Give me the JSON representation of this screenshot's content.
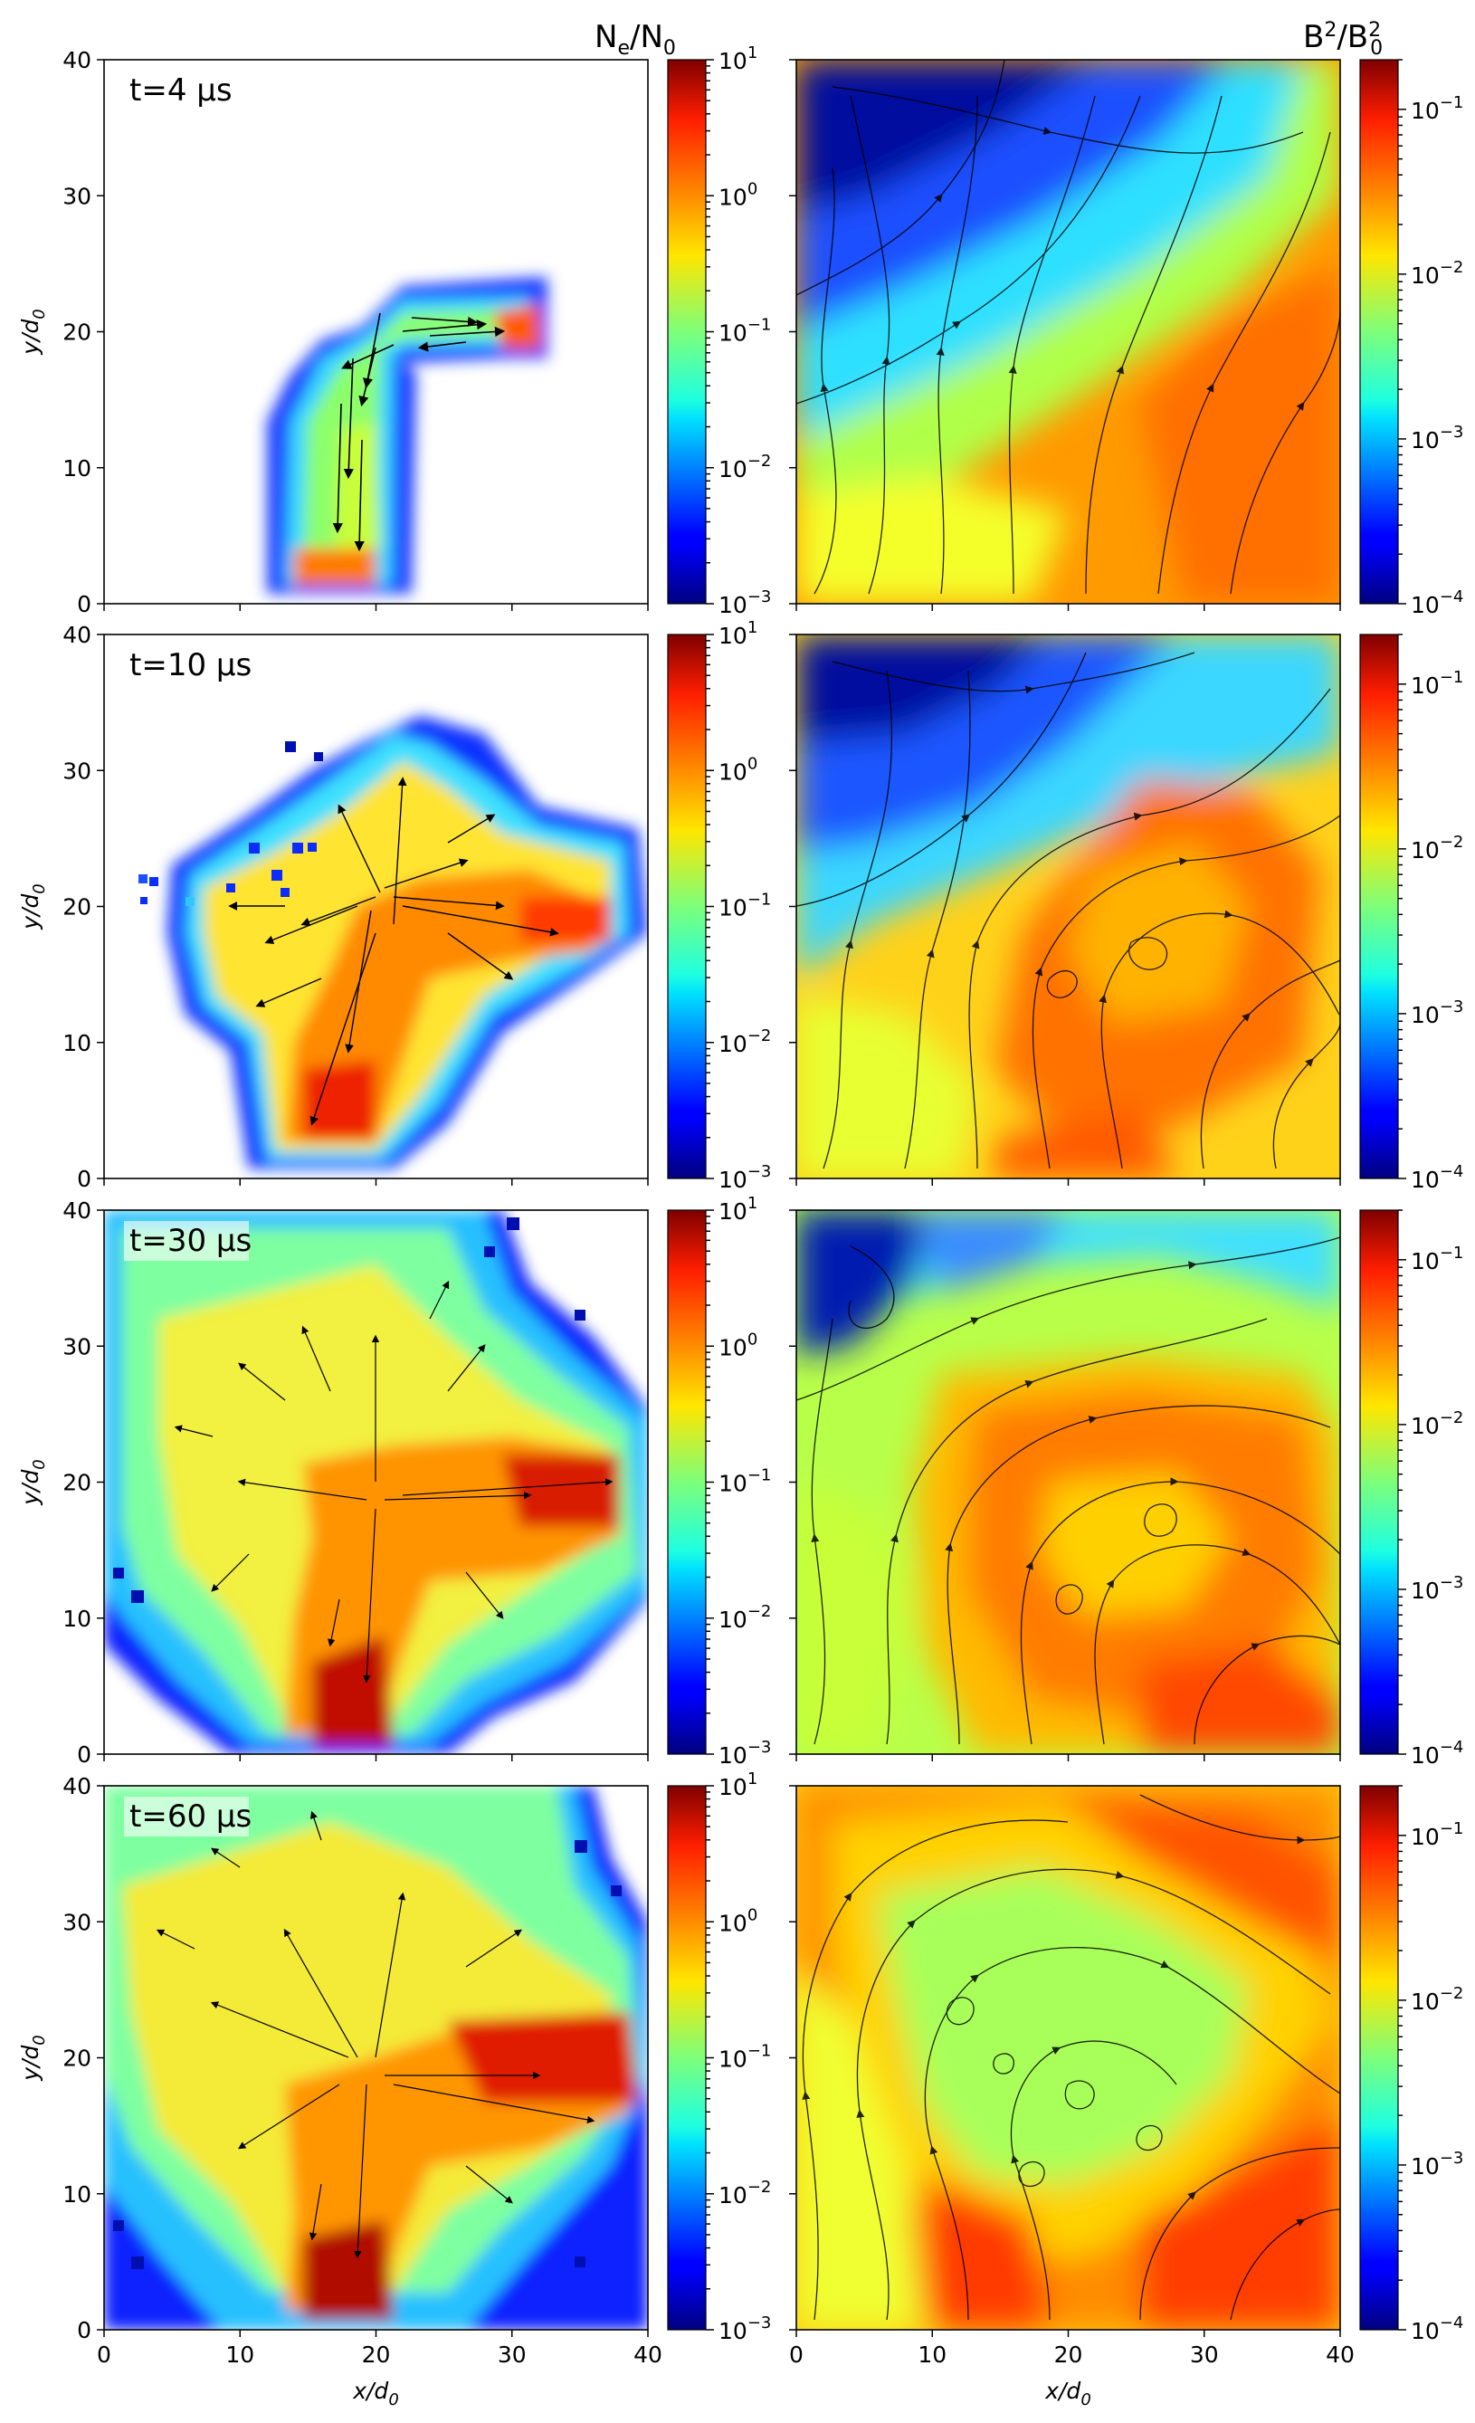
{
  "chart_data": {
    "type": "heatmap",
    "layout": "4 rows x 2 columns",
    "columns": [
      {
        "quantity": "N_e/N_0",
        "title_main": "N",
        "title_sub1": "e",
        "title_mid": "/N",
        "title_sub2": "0",
        "overlay": "velocity arrows (quiver)",
        "colorbar": {
          "scale": "log",
          "range": [
            0.001,
            10
          ],
          "ticks": [
            {
              "base": "10",
              "exp": "1"
            },
            {
              "base": "10",
              "exp": "0"
            },
            {
              "base": "10",
              "exp": "−1"
            },
            {
              "base": "10",
              "exp": "−2"
            },
            {
              "base": "10",
              "exp": "−3"
            }
          ],
          "colormap": "jet"
        }
      },
      {
        "quantity": "B^2/B_0^2",
        "title_main": "B",
        "title_sup1": "2",
        "title_mid": "/B",
        "title_sup2": "2",
        "title_sub2": "0",
        "overlay": "magnetic field streamlines",
        "colorbar": {
          "scale": "log",
          "range": [
            0.0001,
            0.2
          ],
          "ticks": [
            {
              "base": "10",
              "exp": "−1"
            },
            {
              "base": "10",
              "exp": "−2"
            },
            {
              "base": "10",
              "exp": "−3"
            },
            {
              "base": "10",
              "exp": "−4"
            }
          ],
          "colormap": "jet"
        }
      }
    ],
    "rows": [
      {
        "time_label": "t=4 μs"
      },
      {
        "time_label": "t=10 μs"
      },
      {
        "time_label": "t=30 μs"
      },
      {
        "time_label": "t=60 μs"
      }
    ],
    "xlabel_main": "x/d",
    "xlabel_sub": "0",
    "ylabel_main": "y/d",
    "ylabel_sub": "0",
    "xlim": [
      0,
      40
    ],
    "ylim": [
      0,
      40
    ],
    "xticks": [
      "0",
      "10",
      "20",
      "30",
      "40"
    ],
    "yticks": [
      "0",
      "10",
      "20",
      "30",
      "40"
    ],
    "grid": false
  }
}
